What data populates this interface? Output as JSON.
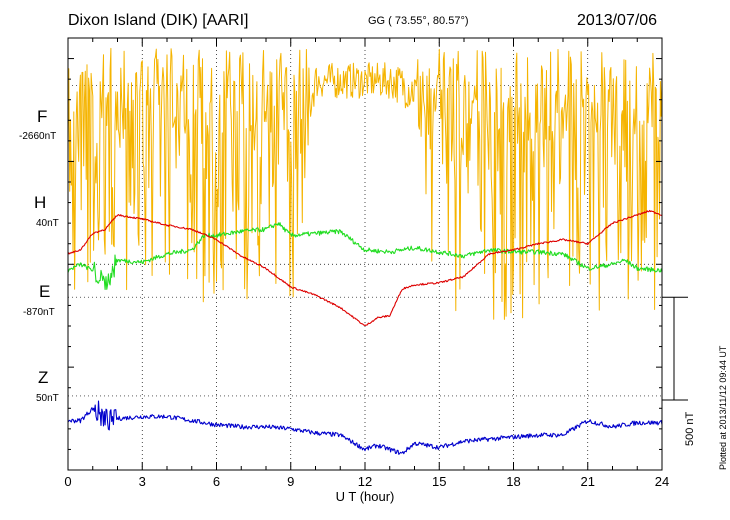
{
  "header": {
    "station": "Dixon Island (DIK)  [AARI]",
    "coordinates": "GG ( 73.55°,  80.57°)",
    "date": "2013/07/06"
  },
  "side_note": "Plotted at 2013/11/12 09:44 UT",
  "scale_bar": {
    "label": "500 nT",
    "value_nT": 500
  },
  "components": [
    {
      "key": "F",
      "label": "F",
      "baseline": "-2660nT",
      "color": "#f5b400"
    },
    {
      "key": "H",
      "label": "H",
      "baseline": "40nT",
      "color": "#22dd22"
    },
    {
      "key": "E",
      "label": "E",
      "baseline": "-870nT",
      "color": "#0000cc"
    },
    {
      "key": "Z",
      "label": "Z",
      "baseline": "50nT",
      "color": "#dd0000"
    }
  ],
  "chart_data": {
    "type": "line",
    "title": "Dixon Island (DIK)  [AARI]",
    "xlabel": "U T (hour)",
    "ylabel": "",
    "xlim": [
      0,
      24
    ],
    "x_ticks": [
      "0",
      "3",
      "6",
      "9",
      "12",
      "15",
      "18",
      "21",
      "24"
    ],
    "ylim_nT": [
      -1000,
      1100
    ],
    "grid": true,
    "series": [
      {
        "name": "F",
        "baseline_nT": -2660,
        "color": "#f5b400",
        "x": [
          0,
          0.5,
          1,
          1.5,
          2,
          2.5,
          3,
          3.5,
          4,
          5,
          6,
          7,
          8,
          9,
          10,
          11,
          12,
          13,
          14,
          15,
          16,
          17,
          18,
          19,
          20,
          21,
          22,
          23,
          24
        ],
        "y": [
          800,
          700,
          550,
          600,
          500,
          450,
          480,
          500,
          600,
          550,
          500,
          600,
          500,
          800,
          800,
          800,
          800,
          800,
          800,
          450,
          550,
          500,
          450,
          500,
          550,
          500,
          500,
          300,
          400
        ],
        "min": [
          -320,
          -60,
          -200,
          -100,
          -200,
          -150,
          0,
          -100,
          -120,
          -200,
          -200,
          -150,
          -280,
          -300,
          700,
          700,
          700,
          700,
          600,
          -250,
          -320,
          -280,
          -300,
          -320,
          -150,
          -250,
          -200,
          -180,
          -240
        ],
        "max": [
          1050,
          1050,
          1050,
          1050,
          1050,
          1050,
          1050,
          1050,
          1050,
          1050,
          1050,
          1050,
          1050,
          1050,
          1050,
          1050,
          1050,
          1050,
          1050,
          1050,
          1050,
          1050,
          1050,
          1050,
          1050,
          1050,
          1050,
          1050,
          1050
        ]
      },
      {
        "name": "H",
        "baseline_nT": 40,
        "color": "#22dd22",
        "x": [
          0,
          0.5,
          1,
          1.5,
          2,
          3,
          4,
          5,
          5.5,
          6,
          7,
          8,
          8.5,
          9,
          10,
          11,
          12,
          13,
          14,
          15,
          16,
          17,
          18,
          19,
          20,
          21,
          22,
          22.5,
          23,
          24
        ],
        "y": [
          -30,
          0,
          -30,
          -100,
          20,
          10,
          50,
          70,
          140,
          140,
          160,
          170,
          200,
          140,
          150,
          160,
          70,
          60,
          80,
          60,
          40,
          70,
          60,
          60,
          50,
          -20,
          0,
          20,
          -20,
          -30
        ]
      },
      {
        "name": "E",
        "baseline_nT": -870,
        "color": "#0000cc",
        "x": [
          0,
          0.5,
          1,
          1.5,
          2,
          3,
          4,
          5,
          6,
          7,
          8,
          9,
          10,
          11,
          12,
          12.5,
          13,
          13.5,
          14,
          15,
          16,
          17,
          18,
          19,
          20,
          21,
          22,
          23,
          24
        ],
        "y": [
          -760,
          -760,
          -700,
          -760,
          -750,
          -740,
          -740,
          -760,
          -780,
          -790,
          -790,
          -800,
          -820,
          -830,
          -900,
          -880,
          -900,
          -920,
          -870,
          -890,
          -860,
          -850,
          -840,
          -830,
          -830,
          -760,
          -790,
          -770,
          -770
        ]
      },
      {
        "name": "Z",
        "baseline_nT": 50,
        "color": "#dd0000",
        "x": [
          0,
          0.5,
          1,
          1.5,
          2,
          3,
          4,
          5,
          6,
          7,
          8,
          9,
          10,
          11,
          12,
          12.5,
          13,
          13.5,
          14,
          15,
          16,
          17,
          18,
          19,
          20,
          21,
          22,
          23,
          23.5,
          24
        ],
        "y": [
          50,
          70,
          150,
          170,
          240,
          220,
          190,
          170,
          120,
          40,
          -20,
          -110,
          -150,
          -210,
          -300,
          -260,
          -250,
          -120,
          -100,
          -90,
          -60,
          50,
          70,
          100,
          120,
          100,
          200,
          240,
          260,
          240
        ]
      }
    ]
  }
}
